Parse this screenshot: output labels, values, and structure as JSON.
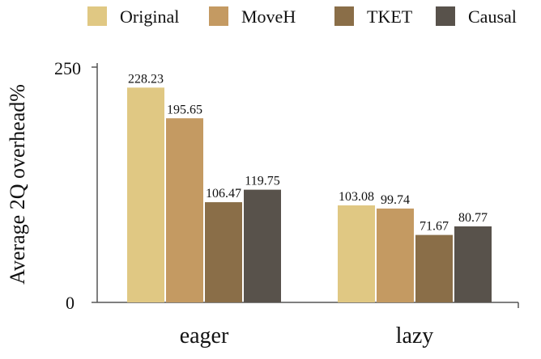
{
  "chart_data": {
    "type": "bar",
    "title": "",
    "xlabel": "",
    "ylabel": "Average 2Q overhead%",
    "categories": [
      "eager",
      "lazy"
    ],
    "ylim": [
      0,
      250
    ],
    "yticks": [
      "0",
      "250"
    ],
    "grid": false,
    "legend_position": "top",
    "series": [
      {
        "name": "Original",
        "color": "#E0C883",
        "values": [
          228.23,
          103.08
        ],
        "labels": [
          "228.23",
          "103.08"
        ]
      },
      {
        "name": "MoveH",
        "color": "#C49A62",
        "values": [
          195.65,
          99.74
        ],
        "labels": [
          "195.65",
          "99.74"
        ]
      },
      {
        "name": "TKET",
        "color": "#8A6E48",
        "values": [
          106.47,
          71.67
        ],
        "labels": [
          "106.47",
          "71.67"
        ]
      },
      {
        "name": "Causal",
        "color": "#58524B",
        "values": [
          119.75,
          80.77
        ],
        "labels": [
          "119.75",
          "80.77"
        ]
      }
    ]
  }
}
